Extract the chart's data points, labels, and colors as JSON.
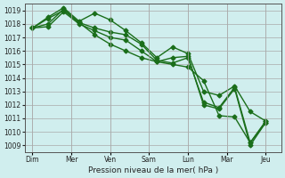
{
  "title": "Pression niveau de la mer( hPa )",
  "ylabel_values": [
    1009,
    1010,
    1011,
    1012,
    1013,
    1014,
    1015,
    1016,
    1017,
    1018,
    1019
  ],
  "ylim": [
    1008.5,
    1019.5
  ],
  "x_tick_labels": [
    "Dim",
    "Mer",
    "Ven",
    "Sam",
    "Lun",
    "Mar",
    "Jeu"
  ],
  "x_tick_positions": [
    0,
    1,
    2,
    3,
    4,
    5,
    6
  ],
  "background_color": "#d0eeee",
  "grid_color": "#aaaaaa",
  "line_color": "#1a6e1a",
  "series": [
    [
      1017.7,
      1018.5,
      1019.2,
      1018.2,
      1018.8,
      1018.3,
      1017.5,
      1016.6,
      1015.5,
      1016.3,
      1015.8,
      1013.0,
      1012.7,
      1013.4,
      1011.5,
      1010.8
    ],
    [
      1017.7,
      1018.0,
      1019.1,
      1018.1,
      1017.7,
      1017.4,
      1017.2,
      1016.5,
      1015.3,
      1015.1,
      1015.5,
      1012.2,
      1011.8,
      1013.3,
      1009.2,
      1010.8
    ],
    [
      1017.7,
      1017.8,
      1018.9,
      1018.0,
      1017.5,
      1017.0,
      1016.8,
      1016.0,
      1015.2,
      1015.5,
      1015.6,
      1012.0,
      1011.7,
      1013.2,
      1009.0,
      1010.7
    ],
    [
      1017.7,
      1018.4,
      1019.0,
      1018.1,
      1017.2,
      1016.5,
      1016.0,
      1015.5,
      1015.2,
      1015.0,
      1014.8,
      1013.8,
      1011.2,
      1011.1,
      1009.2,
      1010.7
    ]
  ],
  "marker": "D",
  "marker_size": 2.5,
  "line_width": 1.0
}
